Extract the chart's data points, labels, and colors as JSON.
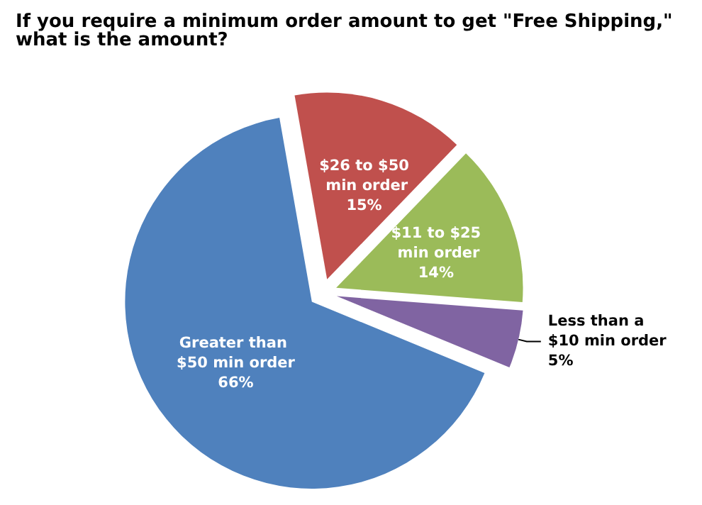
{
  "chart_data": {
    "type": "pie",
    "title": "If you require a minimum order amount to get \"Free Shipping,\" what is the amount?",
    "categories": [
      "$26 to $50 min order",
      "$11 to $25 min order",
      "Less than a $10 min order",
      "Greater than $50 min order"
    ],
    "values": [
      15,
      14,
      5,
      66
    ],
    "colors": [
      "#c0504d",
      "#9bbb59",
      "#8064a2",
      "#4f81bd"
    ],
    "value_labels": [
      "15%",
      "14%",
      "5%",
      "66%"
    ]
  }
}
